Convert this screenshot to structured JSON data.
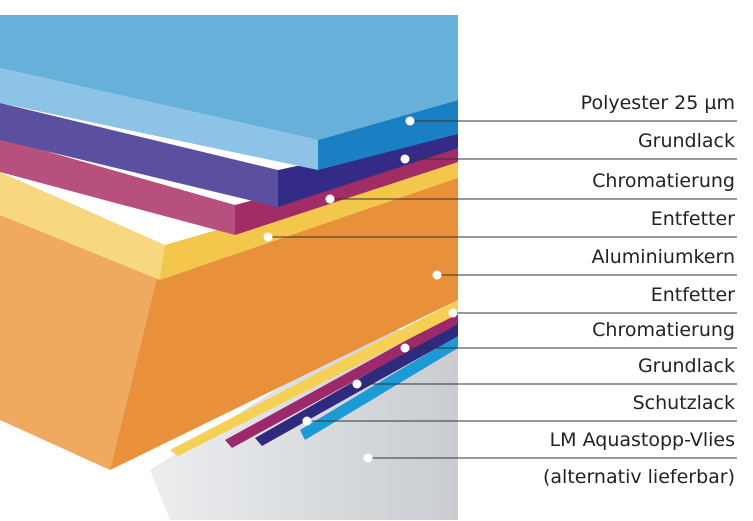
{
  "layers": [
    {
      "label": "Polyester 25 µm"
    },
    {
      "label": "Grundlack"
    },
    {
      "label": "Chromatierung"
    },
    {
      "label": "Entfetter"
    },
    {
      "label": "Aluminiumkern"
    },
    {
      "label": "Entfetter"
    },
    {
      "label": "Chromatierung"
    },
    {
      "label": "Grundlack"
    },
    {
      "label": "Schutzlack"
    },
    {
      "label": "LM Aquastopp-Vlies",
      "note": "(alternativ lieferbar)"
    }
  ]
}
